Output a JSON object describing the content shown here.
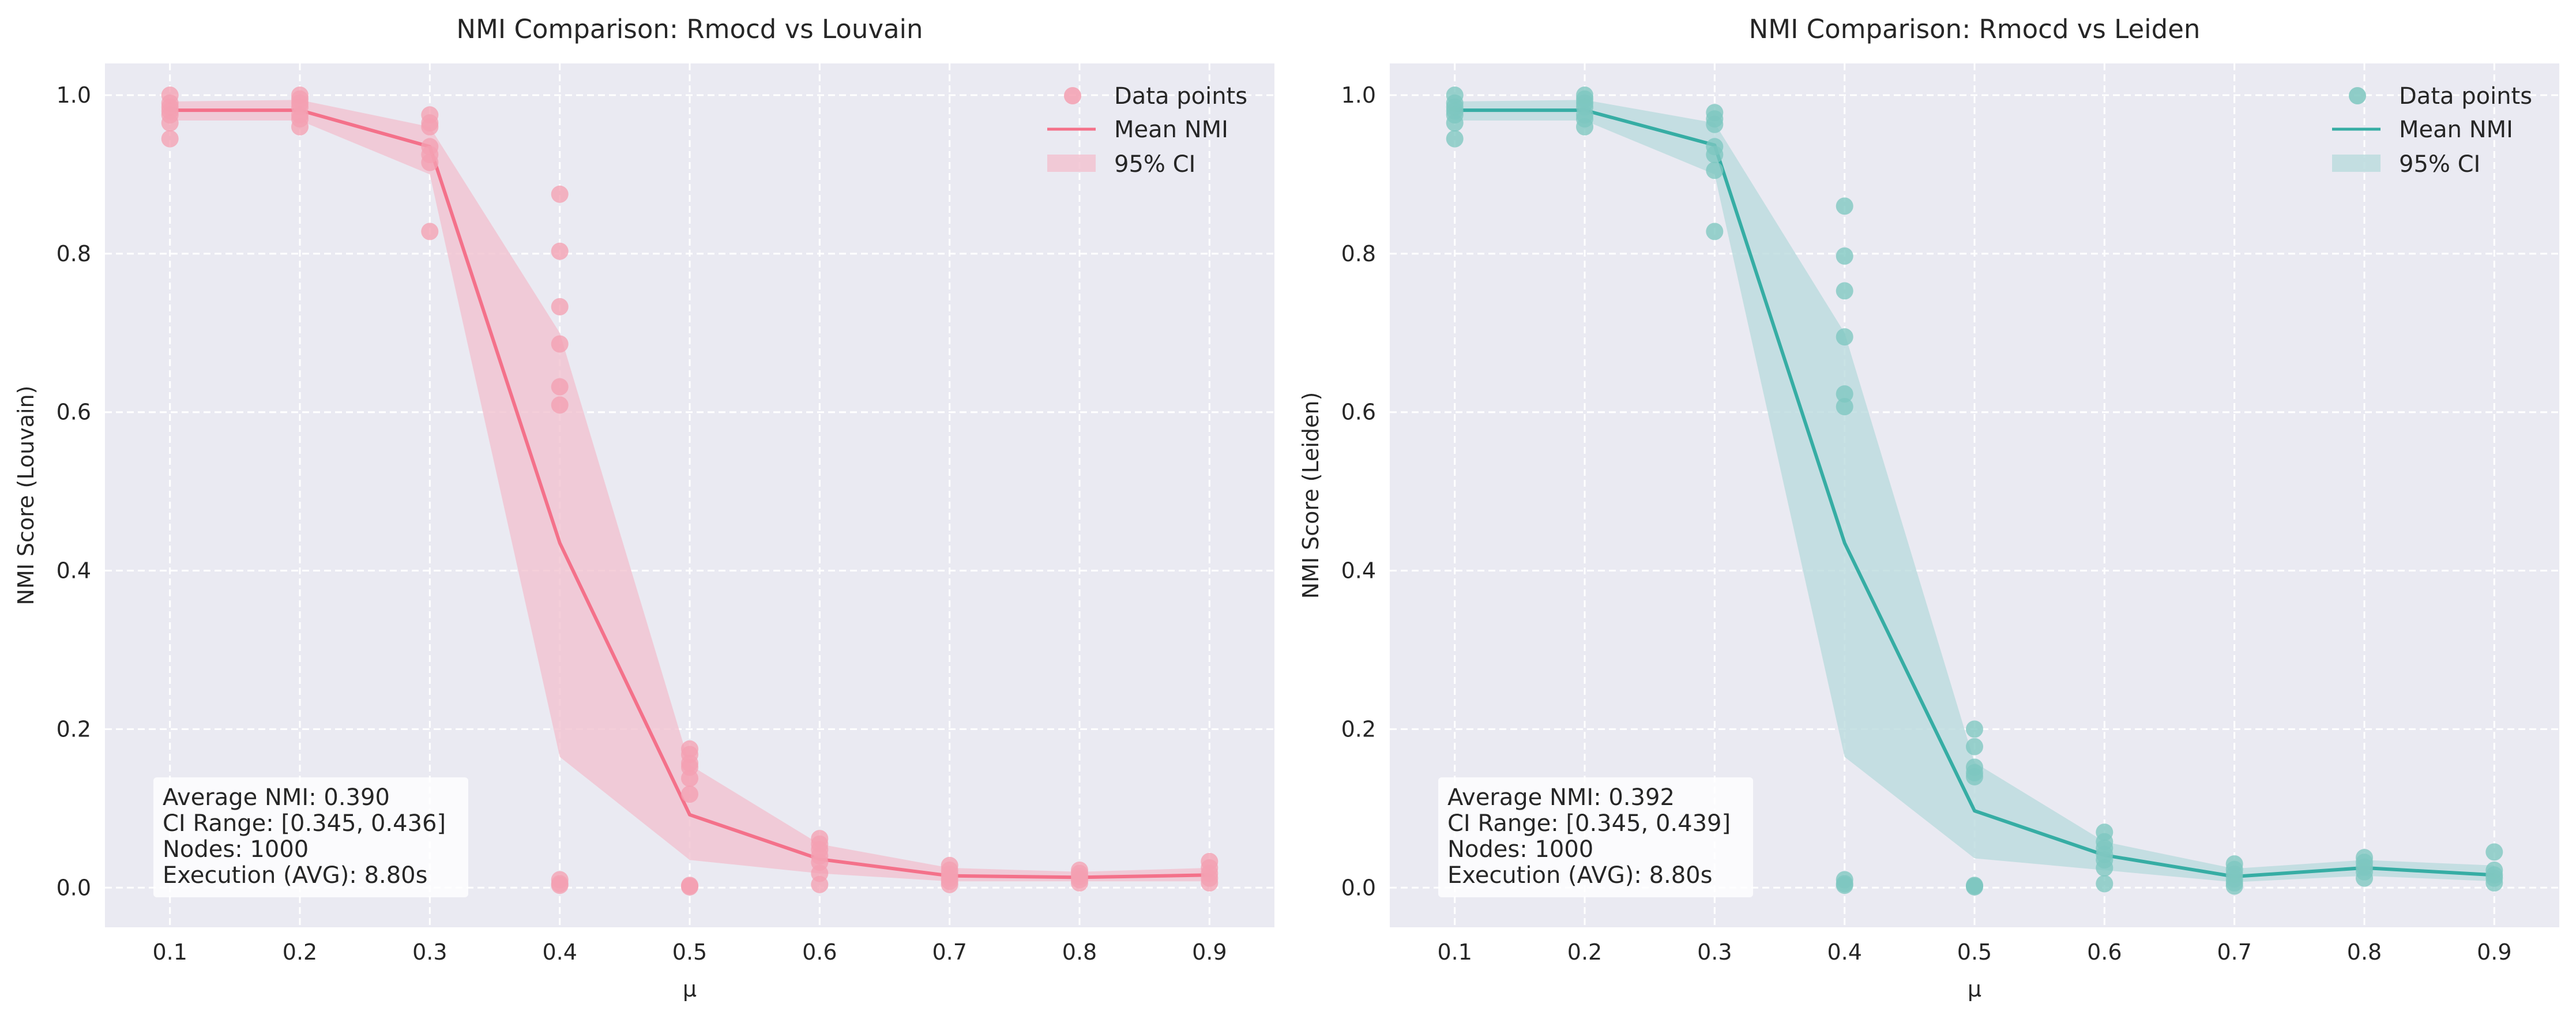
{
  "chart_data": [
    {
      "type": "scatter",
      "title": "NMI Comparison: Rmocd vs Louvain",
      "xlabel": "μ",
      "ylabel": "NMI Score (Louvain)",
      "xlim": [
        0.05,
        0.95
      ],
      "ylim": [
        -0.05,
        1.04
      ],
      "xticks": [
        "0.1",
        "0.2",
        "0.3",
        "0.4",
        "0.5",
        "0.6",
        "0.7",
        "0.8",
        "0.9"
      ],
      "yticks": [
        "0.0",
        "0.2",
        "0.4",
        "0.6",
        "0.8",
        "1.0"
      ],
      "grid": true,
      "legend_position": "top-right",
      "legend": [
        "Data points",
        "Mean NMI",
        "95% CI"
      ],
      "line_color": "#f4718a",
      "point_color": "#f4a0b2",
      "band_color": "#f2c3d1",
      "x": [
        0.1,
        0.2,
        0.3,
        0.4,
        0.5,
        0.6,
        0.7,
        0.8,
        0.9
      ],
      "mean": [
        0.981,
        0.981,
        0.935,
        0.435,
        0.092,
        0.036,
        0.015,
        0.013,
        0.016
      ],
      "ci_low": [
        0.968,
        0.968,
        0.9,
        0.165,
        0.035,
        0.018,
        0.008,
        0.008,
        0.008
      ],
      "ci_high": [
        0.992,
        0.994,
        0.96,
        0.7,
        0.155,
        0.055,
        0.025,
        0.02,
        0.025
      ],
      "points": [
        {
          "x": 0.1,
          "y": [
            1.0,
            0.99,
            0.985,
            0.98,
            0.975,
            0.965,
            0.945
          ]
        },
        {
          "x": 0.2,
          "y": [
            1.0,
            0.995,
            0.99,
            0.985,
            0.975,
            0.97,
            0.96
          ]
        },
        {
          "x": 0.3,
          "y": [
            0.975,
            0.965,
            0.96,
            0.935,
            0.925,
            0.915,
            0.828
          ]
        },
        {
          "x": 0.4,
          "y": [
            0.875,
            0.803,
            0.733,
            0.686,
            0.632,
            0.609,
            0.01,
            0.005,
            0.003
          ]
        },
        {
          "x": 0.5,
          "y": [
            0.175,
            0.168,
            0.157,
            0.152,
            0.138,
            0.118,
            0.003,
            0.002,
            0.001
          ]
        },
        {
          "x": 0.6,
          "y": [
            0.062,
            0.055,
            0.048,
            0.04,
            0.032,
            0.018,
            0.004
          ]
        },
        {
          "x": 0.7,
          "y": [
            0.028,
            0.022,
            0.017,
            0.012,
            0.008,
            0.004
          ]
        },
        {
          "x": 0.8,
          "y": [
            0.022,
            0.018,
            0.014,
            0.01,
            0.006
          ]
        },
        {
          "x": 0.9,
          "y": [
            0.033,
            0.025,
            0.018,
            0.012,
            0.006
          ]
        }
      ],
      "stats": {
        "average": "Average NMI: 0.390",
        "ci_range": "CI Range: [0.345, 0.436]",
        "nodes": "Nodes: 1000",
        "execution": "Execution (AVG): 8.80s"
      }
    },
    {
      "type": "scatter",
      "title": "NMI Comparison: Rmocd vs Leiden",
      "xlabel": "μ",
      "ylabel": "NMI Score (Leiden)",
      "xlim": [
        0.05,
        0.95
      ],
      "ylim": [
        -0.05,
        1.04
      ],
      "xticks": [
        "0.1",
        "0.2",
        "0.3",
        "0.4",
        "0.5",
        "0.6",
        "0.7",
        "0.8",
        "0.9"
      ],
      "yticks": [
        "0.0",
        "0.2",
        "0.4",
        "0.6",
        "0.8",
        "1.0"
      ],
      "grid": true,
      "legend_position": "top-right",
      "legend": [
        "Data points",
        "Mean NMI",
        "95% CI"
      ],
      "line_color": "#36ada4",
      "point_color": "#7ec7c0",
      "band_color": "#bcdcde",
      "x": [
        0.1,
        0.2,
        0.3,
        0.4,
        0.5,
        0.6,
        0.7,
        0.8,
        0.9
      ],
      "mean": [
        0.981,
        0.981,
        0.937,
        0.435,
        0.097,
        0.041,
        0.014,
        0.025,
        0.016
      ],
      "ci_low": [
        0.968,
        0.968,
        0.9,
        0.165,
        0.037,
        0.022,
        0.007,
        0.015,
        0.008
      ],
      "ci_high": [
        0.992,
        0.994,
        0.965,
        0.7,
        0.158,
        0.058,
        0.024,
        0.035,
        0.028
      ],
      "points": [
        {
          "x": 0.1,
          "y": [
            1.0,
            0.99,
            0.985,
            0.98,
            0.975,
            0.965,
            0.945
          ]
        },
        {
          "x": 0.2,
          "y": [
            1.0,
            0.995,
            0.99,
            0.985,
            0.975,
            0.97,
            0.96
          ]
        },
        {
          "x": 0.3,
          "y": [
            0.978,
            0.97,
            0.963,
            0.935,
            0.925,
            0.905,
            0.828
          ]
        },
        {
          "x": 0.4,
          "y": [
            0.86,
            0.797,
            0.753,
            0.695,
            0.623,
            0.607,
            0.01,
            0.005,
            0.003
          ]
        },
        {
          "x": 0.5,
          "y": [
            0.2,
            0.178,
            0.152,
            0.145,
            0.14,
            0.003,
            0.002,
            0.001
          ]
        },
        {
          "x": 0.6,
          "y": [
            0.07,
            0.058,
            0.05,
            0.042,
            0.035,
            0.025,
            0.005
          ]
        },
        {
          "x": 0.7,
          "y": [
            0.03,
            0.023,
            0.017,
            0.011,
            0.006,
            0.002
          ]
        },
        {
          "x": 0.8,
          "y": [
            0.038,
            0.032,
            0.026,
            0.02,
            0.012
          ]
        },
        {
          "x": 0.9,
          "y": [
            0.045,
            0.022,
            0.016,
            0.012,
            0.006
          ]
        }
      ],
      "stats": {
        "average": "Average NMI: 0.392",
        "ci_range": "CI Range: [0.345, 0.439]",
        "nodes": "Nodes: 1000",
        "execution": "Execution (AVG): 8.80s"
      }
    }
  ]
}
